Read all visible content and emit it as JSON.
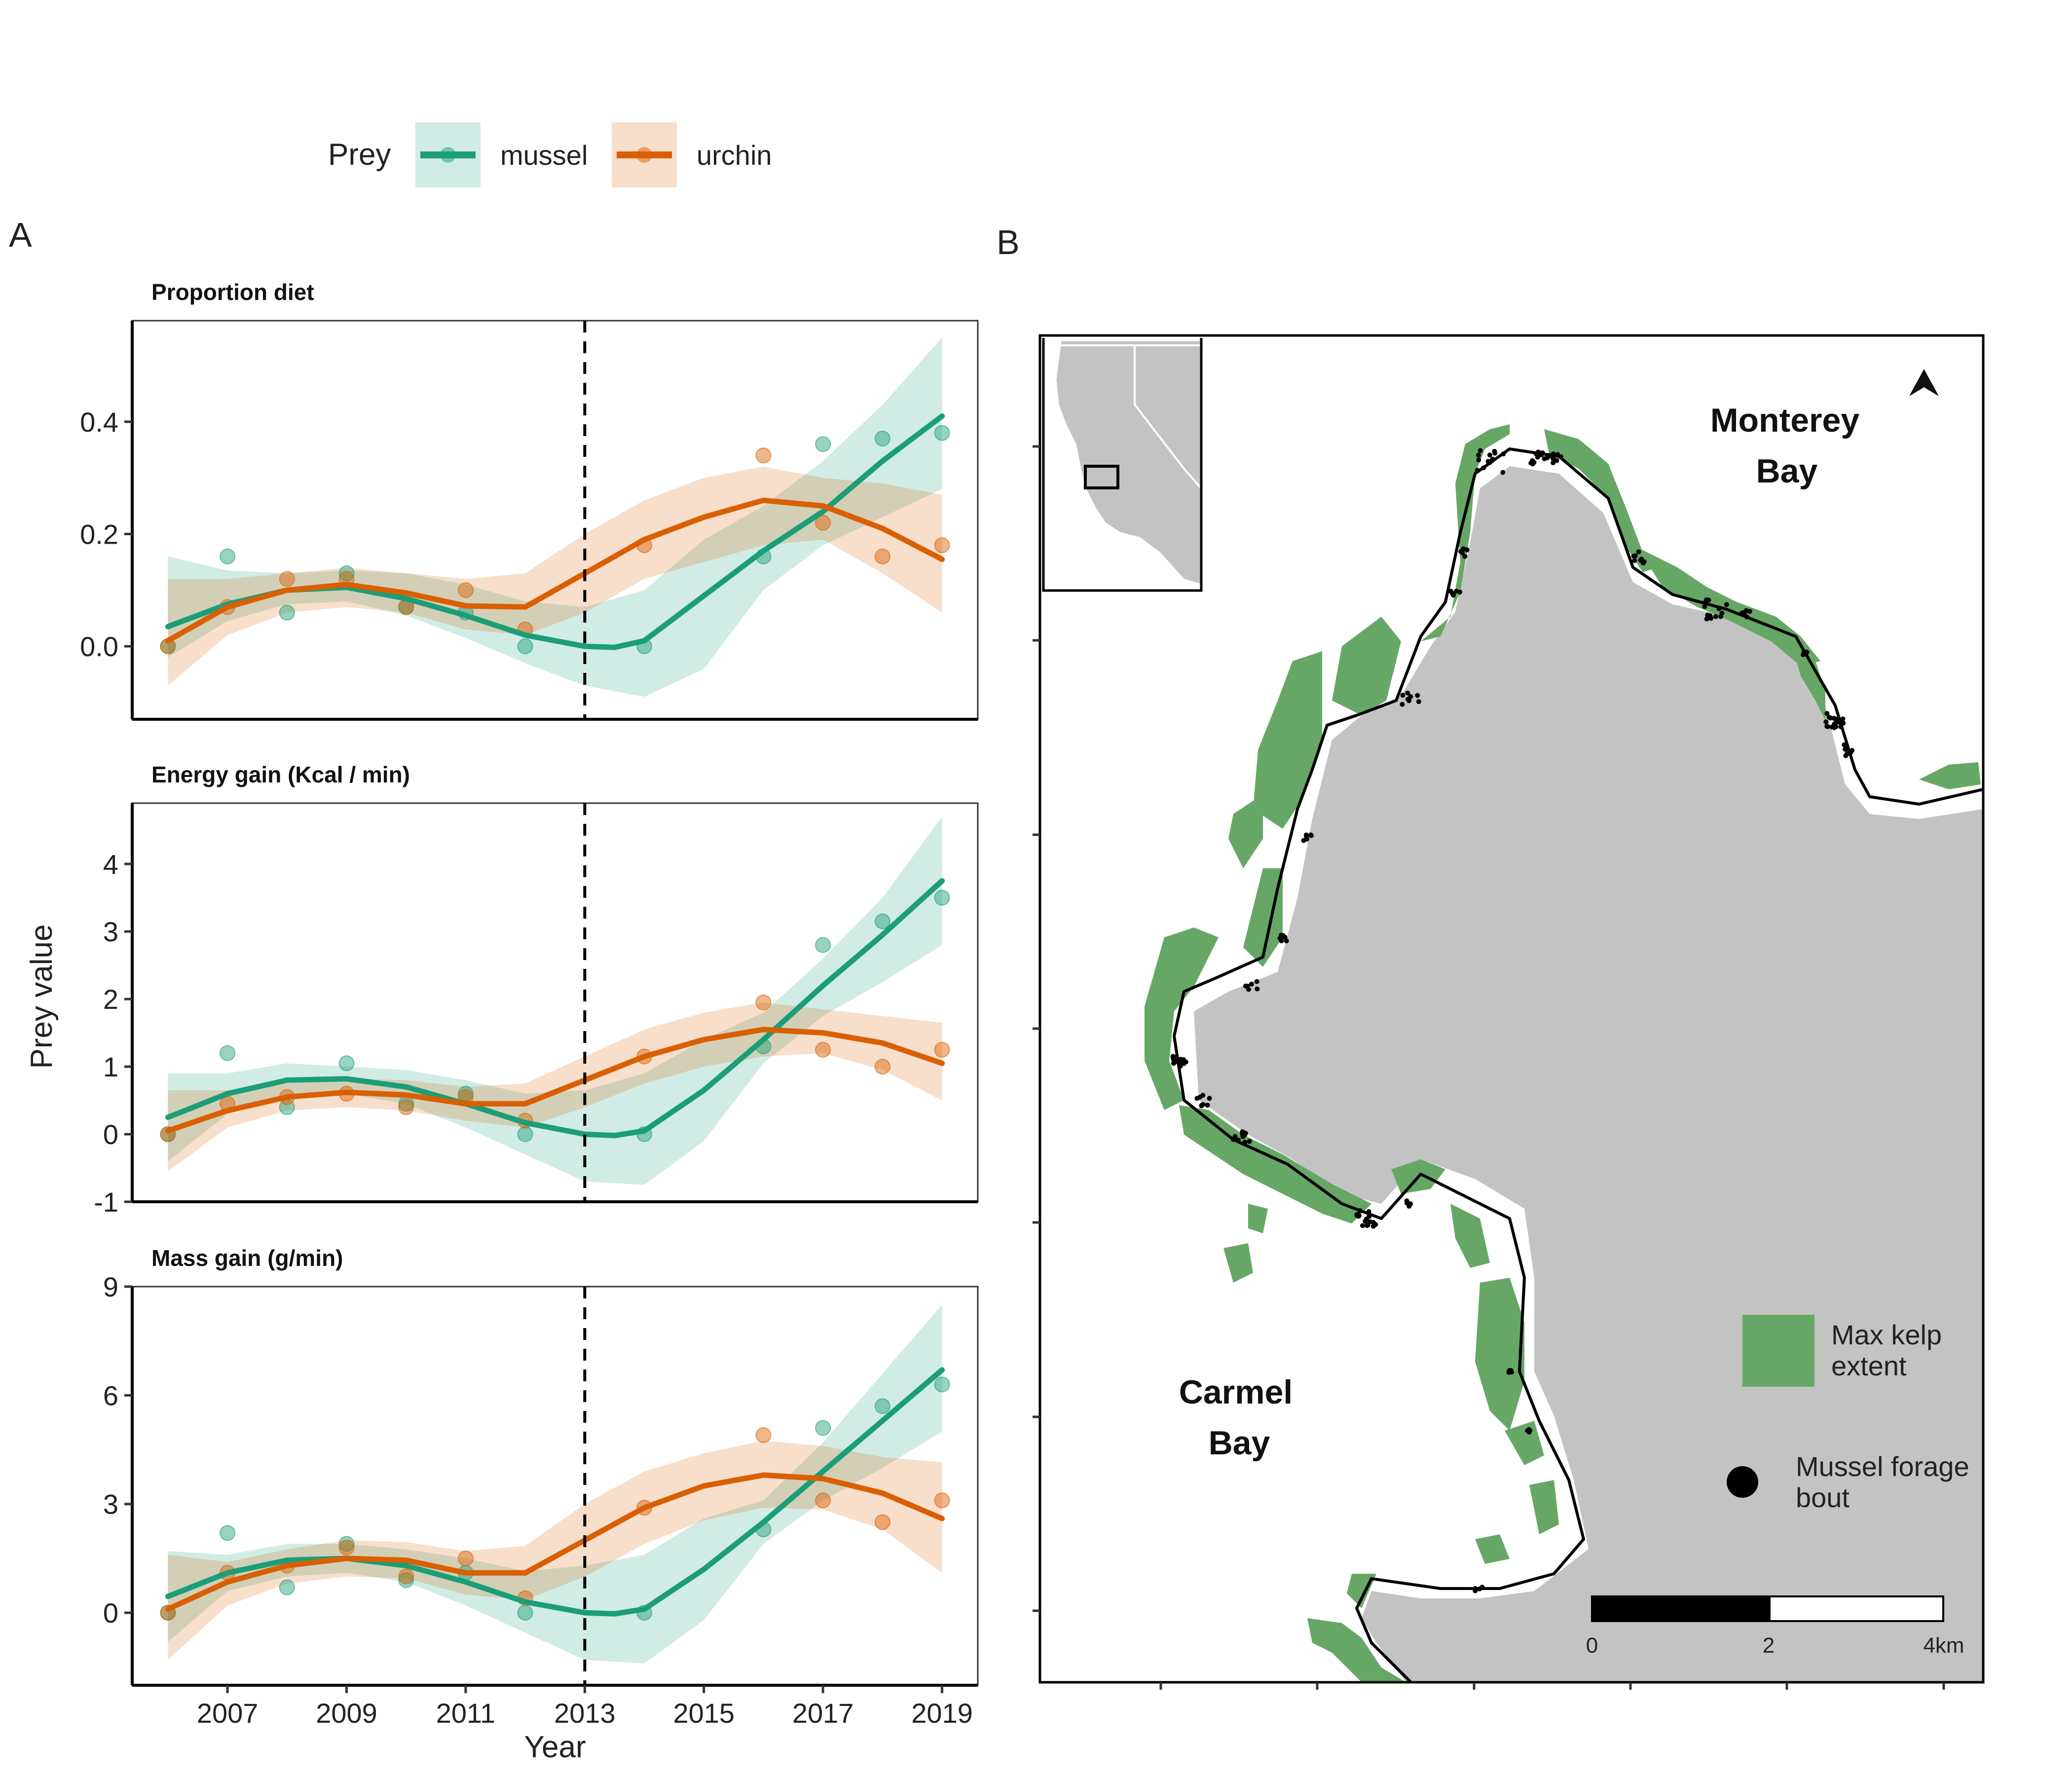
{
  "legend": {
    "title": "Prey",
    "items": [
      {
        "label": "mussel",
        "color": "#1b9e77"
      },
      {
        "label": "urchin",
        "color": "#d95f02"
      }
    ]
  },
  "panel_labels": {
    "a": "A",
    "b": "B"
  },
  "colors": {
    "mussel": "#1b9e77",
    "urchin": "#d95f02",
    "kelp": "#67a765",
    "land": "#c3c3c3",
    "coast_buffer": "#ffffff"
  },
  "chart_data": [
    {
      "type": "line",
      "title": "Proportion diet",
      "xlabel": "Year",
      "ylabel": "Prey value",
      "x": [
        2006,
        2007,
        2008,
        2009,
        2010,
        2011,
        2012,
        2013,
        2014,
        2015,
        2016,
        2017,
        2018,
        2019
      ],
      "xlim": [
        2005.4,
        2019.6
      ],
      "ylim": [
        -0.13,
        0.58
      ],
      "yticks": [
        0.0,
        0.2,
        0.4
      ],
      "ytick_labels": [
        "0.0",
        "0.2",
        "0.4"
      ],
      "vline": 2013,
      "series": [
        {
          "name": "mussel",
          "points": [
            [
              2006,
              0.0
            ],
            [
              2007,
              0.16
            ],
            [
              2008,
              0.06
            ],
            [
              2009,
              0.13
            ],
            [
              2010,
              0.07
            ],
            [
              2011,
              0.06
            ],
            [
              2012,
              0.0
            ],
            [
              2014,
              0.0
            ],
            [
              2016,
              0.16
            ],
            [
              2017,
              0.36
            ],
            [
              2018,
              0.37
            ],
            [
              2019,
              0.38
            ]
          ],
          "fit": [
            [
              2006,
              0.035
            ],
            [
              2007,
              0.075
            ],
            [
              2008,
              0.1
            ],
            [
              2009,
              0.105
            ],
            [
              2010,
              0.085
            ],
            [
              2011,
              0.055
            ],
            [
              2012,
              0.02
            ],
            [
              2013,
              0.0
            ],
            [
              2013.5,
              -0.002
            ],
            [
              2014,
              0.01
            ],
            [
              2015,
              0.09
            ],
            [
              2016,
              0.17
            ],
            [
              2017,
              0.24
            ],
            [
              2018,
              0.33
            ],
            [
              2019,
              0.41
            ]
          ],
          "lower": [
            -0.02,
            0.045,
            0.075,
            0.08,
            0.055,
            0.015,
            -0.03,
            -0.07,
            -0.09,
            -0.04,
            0.1,
            0.18,
            0.23,
            0.28
          ],
          "upper": [
            0.16,
            0.135,
            0.13,
            0.135,
            0.13,
            0.11,
            0.08,
            0.07,
            0.1,
            0.19,
            0.25,
            0.33,
            0.43,
            0.55
          ]
        },
        {
          "name": "urchin",
          "points": [
            [
              2006,
              0.0
            ],
            [
              2007,
              0.07
            ],
            [
              2008,
              0.12
            ],
            [
              2009,
              0.12
            ],
            [
              2010,
              0.07
            ],
            [
              2011,
              0.1
            ],
            [
              2012,
              0.03
            ],
            [
              2014,
              0.18
            ],
            [
              2016,
              0.34
            ],
            [
              2017,
              0.22
            ],
            [
              2018,
              0.16
            ],
            [
              2019,
              0.18
            ]
          ],
          "fit": [
            [
              2006,
              0.01
            ],
            [
              2007,
              0.07
            ],
            [
              2008,
              0.1
            ],
            [
              2009,
              0.11
            ],
            [
              2010,
              0.095
            ],
            [
              2011,
              0.072
            ],
            [
              2012,
              0.07
            ],
            [
              2013,
              0.13
            ],
            [
              2014,
              0.19
            ],
            [
              2015,
              0.23
            ],
            [
              2016,
              0.26
            ],
            [
              2017,
              0.25
            ],
            [
              2018,
              0.21
            ],
            [
              2019,
              0.155
            ]
          ],
          "lower": [
            -0.07,
            0.02,
            0.06,
            0.07,
            0.06,
            0.03,
            0.02,
            0.06,
            0.12,
            0.15,
            0.18,
            0.19,
            0.13,
            0.06
          ],
          "upper": [
            0.12,
            0.12,
            0.13,
            0.14,
            0.13,
            0.12,
            0.13,
            0.2,
            0.26,
            0.3,
            0.32,
            0.3,
            0.29,
            0.27
          ]
        }
      ]
    },
    {
      "type": "line",
      "title": "Energy gain (Kcal / min)",
      "xlabel": "Year",
      "ylabel": "Prey value",
      "x": [
        2006,
        2007,
        2008,
        2009,
        2010,
        2011,
        2012,
        2013,
        2014,
        2015,
        2016,
        2017,
        2018,
        2019
      ],
      "xlim": [
        2005.4,
        2019.6
      ],
      "ylim": [
        -1,
        4.9
      ],
      "yticks": [
        -1,
        0,
        1,
        2,
        3,
        4
      ],
      "ytick_labels": [
        "-1",
        "0",
        "1",
        "2",
        "3",
        "4"
      ],
      "vline": 2013,
      "series": [
        {
          "name": "mussel",
          "points": [
            [
              2006,
              0.0
            ],
            [
              2007,
              1.2
            ],
            [
              2008,
              0.4
            ],
            [
              2009,
              1.05
            ],
            [
              2010,
              0.45
            ],
            [
              2011,
              0.6
            ],
            [
              2012,
              0.0
            ],
            [
              2014,
              0.0
            ],
            [
              2016,
              1.3
            ],
            [
              2017,
              2.8
            ],
            [
              2018,
              3.15
            ],
            [
              2019,
              3.5
            ]
          ],
          "fit": [
            [
              2006,
              0.25
            ],
            [
              2007,
              0.6
            ],
            [
              2008,
              0.8
            ],
            [
              2009,
              0.82
            ],
            [
              2010,
              0.7
            ],
            [
              2011,
              0.45
            ],
            [
              2012,
              0.17
            ],
            [
              2013,
              0.0
            ],
            [
              2013.5,
              -0.02
            ],
            [
              2014,
              0.05
            ],
            [
              2015,
              0.65
            ],
            [
              2016,
              1.4
            ],
            [
              2017,
              2.2
            ],
            [
              2018,
              2.95
            ],
            [
              2019,
              3.75
            ]
          ],
          "lower": [
            -0.4,
            0.3,
            0.55,
            0.6,
            0.45,
            0.1,
            -0.3,
            -0.7,
            -0.75,
            -0.1,
            1.05,
            1.75,
            2.25,
            2.8
          ],
          "upper": [
            0.9,
            0.9,
            1.05,
            1.0,
            0.95,
            0.8,
            0.6,
            0.65,
            0.9,
            1.4,
            1.8,
            2.6,
            3.5,
            4.7
          ]
        },
        {
          "name": "urchin",
          "points": [
            [
              2006,
              0.0
            ],
            [
              2007,
              0.45
            ],
            [
              2008,
              0.55
            ],
            [
              2009,
              0.6
            ],
            [
              2010,
              0.4
            ],
            [
              2011,
              0.55
            ],
            [
              2012,
              0.2
            ],
            [
              2014,
              1.15
            ],
            [
              2016,
              1.95
            ],
            [
              2017,
              1.25
            ],
            [
              2018,
              1.0
            ],
            [
              2019,
              1.25
            ]
          ],
          "fit": [
            [
              2006,
              0.05
            ],
            [
              2007,
              0.35
            ],
            [
              2008,
              0.55
            ],
            [
              2009,
              0.62
            ],
            [
              2010,
              0.58
            ],
            [
              2011,
              0.45
            ],
            [
              2012,
              0.45
            ],
            [
              2013,
              0.8
            ],
            [
              2014,
              1.15
            ],
            [
              2015,
              1.4
            ],
            [
              2016,
              1.55
            ],
            [
              2017,
              1.5
            ],
            [
              2018,
              1.35
            ],
            [
              2019,
              1.05
            ]
          ],
          "lower": [
            -0.55,
            0.1,
            0.35,
            0.4,
            0.35,
            0.2,
            0.1,
            0.4,
            0.75,
            1.0,
            1.15,
            1.2,
            0.95,
            0.5
          ],
          "upper": [
            0.65,
            0.65,
            0.75,
            0.82,
            0.8,
            0.7,
            0.75,
            1.15,
            1.55,
            1.8,
            1.95,
            1.85,
            1.75,
            1.65
          ]
        }
      ]
    },
    {
      "type": "line",
      "title": "Mass gain (g/min)",
      "xlabel": "Year",
      "ylabel": "Prey value",
      "x": [
        2006,
        2007,
        2008,
        2009,
        2010,
        2011,
        2012,
        2013,
        2014,
        2015,
        2016,
        2017,
        2018,
        2019
      ],
      "xticks": [
        2007,
        2009,
        2011,
        2013,
        2015,
        2017,
        2019
      ],
      "xlim": [
        2005.4,
        2019.6
      ],
      "ylim": [
        -2,
        9
      ],
      "yticks": [
        0,
        3,
        6,
        9
      ],
      "ytick_labels": [
        "0",
        "3",
        "6",
        "9"
      ],
      "vline": 2013,
      "series": [
        {
          "name": "mussel",
          "points": [
            [
              2006,
              0.0
            ],
            [
              2007,
              2.2
            ],
            [
              2008,
              0.7
            ],
            [
              2009,
              1.9
            ],
            [
              2010,
              0.9
            ],
            [
              2011,
              1.1
            ],
            [
              2012,
              0.0
            ],
            [
              2014,
              0.0
            ],
            [
              2016,
              2.3
            ],
            [
              2017,
              5.1
            ],
            [
              2018,
              5.7
            ],
            [
              2019,
              6.3
            ]
          ],
          "fit": [
            [
              2006,
              0.45
            ],
            [
              2007,
              1.1
            ],
            [
              2008,
              1.45
            ],
            [
              2009,
              1.5
            ],
            [
              2010,
              1.3
            ],
            [
              2011,
              0.85
            ],
            [
              2012,
              0.3
            ],
            [
              2013,
              0.0
            ],
            [
              2013.5,
              -0.03
            ],
            [
              2014,
              0.1
            ],
            [
              2015,
              1.2
            ],
            [
              2016,
              2.5
            ],
            [
              2017,
              3.9
            ],
            [
              2018,
              5.3
            ],
            [
              2019,
              6.7
            ]
          ],
          "lower": [
            -0.8,
            0.6,
            1.0,
            1.1,
            0.85,
            0.2,
            -0.55,
            -1.3,
            -1.4,
            -0.2,
            1.9,
            3.1,
            4.0,
            5.0
          ],
          "upper": [
            1.7,
            1.6,
            1.9,
            1.9,
            1.75,
            1.5,
            1.15,
            1.3,
            1.6,
            2.6,
            3.1,
            4.7,
            6.6,
            8.5
          ]
        },
        {
          "name": "urchin",
          "points": [
            [
              2006,
              0.0
            ],
            [
              2007,
              1.1
            ],
            [
              2008,
              1.3
            ],
            [
              2009,
              1.8
            ],
            [
              2010,
              1.0
            ],
            [
              2011,
              1.5
            ],
            [
              2012,
              0.4
            ],
            [
              2014,
              2.9
            ],
            [
              2016,
              4.9
            ],
            [
              2017,
              3.1
            ],
            [
              2018,
              2.5
            ],
            [
              2019,
              3.1
            ]
          ],
          "fit": [
            [
              2006,
              0.1
            ],
            [
              2007,
              0.85
            ],
            [
              2008,
              1.3
            ],
            [
              2009,
              1.5
            ],
            [
              2010,
              1.45
            ],
            [
              2011,
              1.1
            ],
            [
              2012,
              1.1
            ],
            [
              2013,
              2.0
            ],
            [
              2014,
              2.9
            ],
            [
              2015,
              3.5
            ],
            [
              2016,
              3.8
            ],
            [
              2017,
              3.7
            ],
            [
              2018,
              3.3
            ],
            [
              2019,
              2.6
            ]
          ],
          "lower": [
            -1.3,
            0.2,
            0.8,
            1.0,
            0.95,
            0.5,
            0.35,
            1.0,
            1.9,
            2.55,
            2.9,
            2.85,
            2.3,
            1.1
          ],
          "upper": [
            1.6,
            1.4,
            1.75,
            2.0,
            1.95,
            1.7,
            1.85,
            3.0,
            3.9,
            4.4,
            4.75,
            4.6,
            4.3,
            4.15
          ]
        }
      ]
    }
  ],
  "map": {
    "labels": {
      "monterey_line1": "Monterey",
      "monterey_line2": "Bay",
      "carmel_line1": "Carmel",
      "carmel_line2": "Bay"
    },
    "legend": {
      "kelp_line1": "Max kelp",
      "kelp_line2": "extent",
      "forage_line1": "Mussel forage",
      "forage_line2": "bout"
    },
    "scalebar": {
      "labels": [
        "0",
        "2",
        "4km"
      ]
    },
    "north_arrow_icon": "north-arrow-icon"
  }
}
